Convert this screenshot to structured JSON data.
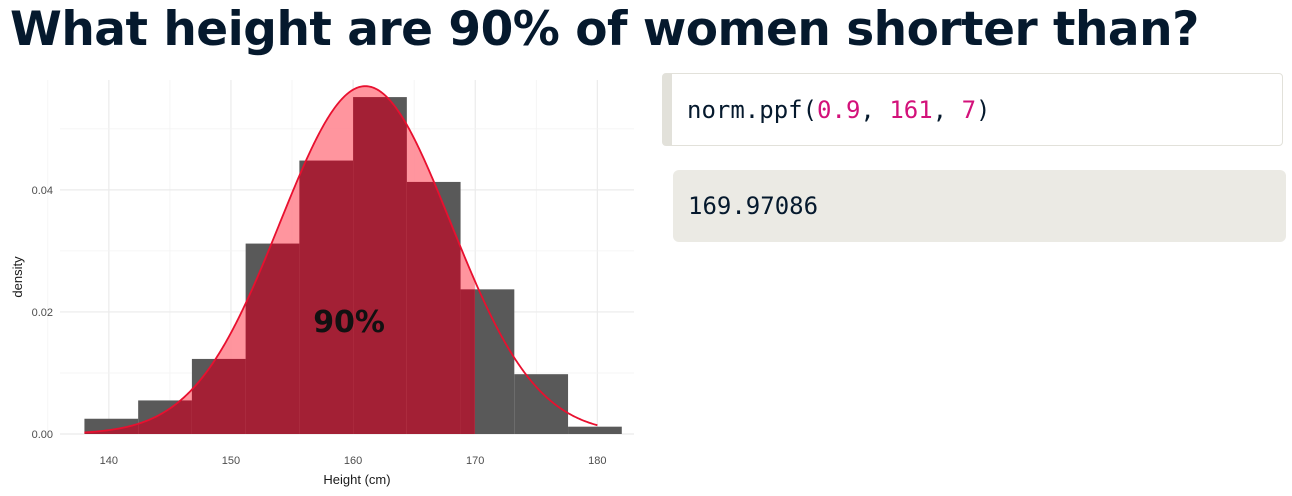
{
  "slide": {
    "title": "What height are 90% of women shorter than?"
  },
  "code": {
    "func": "norm.ppf(",
    "arg1": "0.9",
    "sep1": ", ",
    "arg2": "161",
    "sep2": ", ",
    "arg3": "7",
    "close": ")"
  },
  "output": {
    "value": "169.97086"
  },
  "colors": {
    "title": "#05192d",
    "code_number": "#d3117a",
    "histogram_bar": "#595959",
    "shaded_bar": "#a32035",
    "curve_fill": "#ff8a94",
    "curve_line": "#e8102f",
    "output_bg": "#ebeae4"
  },
  "chart_data": {
    "type": "bar",
    "subtype": "histogram with normal density overlay",
    "xlabel": "Height (cm)",
    "ylabel": "density",
    "xlim": [
      136,
      183
    ],
    "ylim": [
      0,
      0.058
    ],
    "x_ticks": [
      140,
      150,
      160,
      170,
      180
    ],
    "y_ticks": [
      "0.00",
      "0.02",
      "0.04"
    ],
    "y_tick_values": [
      0,
      0.02,
      0.04
    ],
    "grid": true,
    "histogram": {
      "bin_edges": [
        138.0,
        142.4,
        146.8,
        151.2,
        155.6,
        160.0,
        164.4,
        168.8,
        173.2,
        177.6,
        182.0
      ],
      "densities": [
        0.0025,
        0.0055,
        0.0123,
        0.0312,
        0.0448,
        0.0552,
        0.0413,
        0.0237,
        0.0098,
        0.0012
      ]
    },
    "normal_curve": {
      "mean": 161,
      "sd": 7,
      "x_range": [
        138,
        180
      ]
    },
    "shaded_up_to": 169.97086,
    "annotation": {
      "text": "90%",
      "x": 160,
      "y": 0.0185
    }
  }
}
